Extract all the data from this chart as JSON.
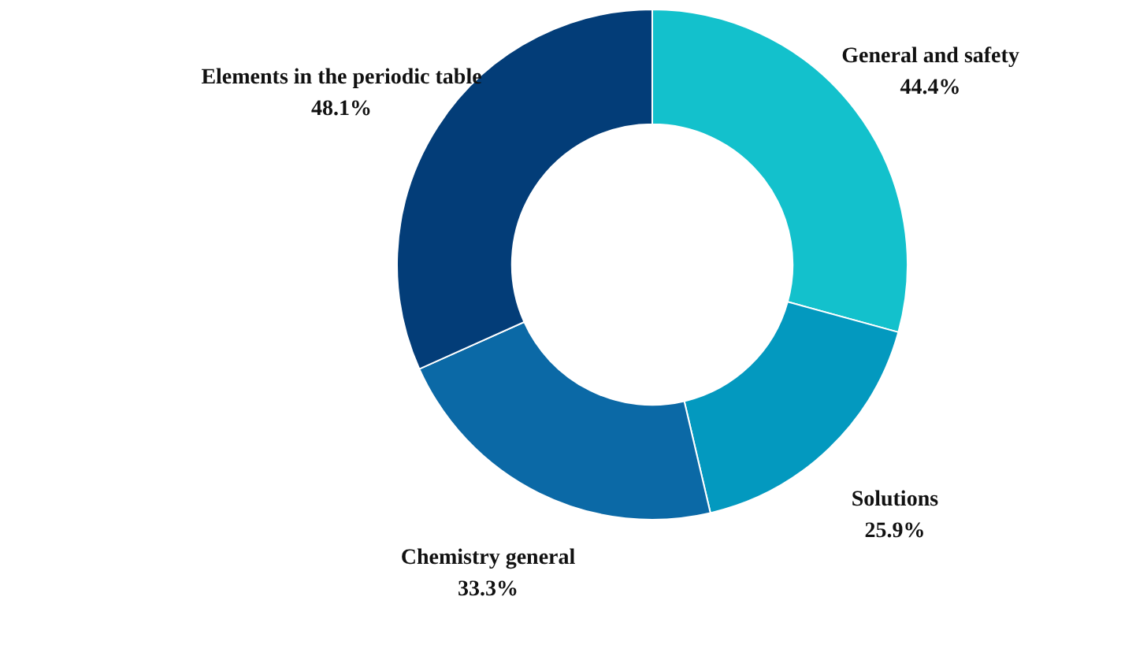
{
  "chart_data": {
    "type": "donut",
    "categories": [
      "General and safety",
      "Solutions",
      "Chemistry general",
      "Elements in the periodic table"
    ],
    "values": [
      44.4,
      25.9,
      33.3,
      48.1
    ],
    "colors": [
      "#13c1cc",
      "#0399bf",
      "#0b69a6",
      "#033d78"
    ],
    "value_labels": [
      "44.4%",
      "25.9%",
      "33.3%",
      "48.1%"
    ]
  }
}
